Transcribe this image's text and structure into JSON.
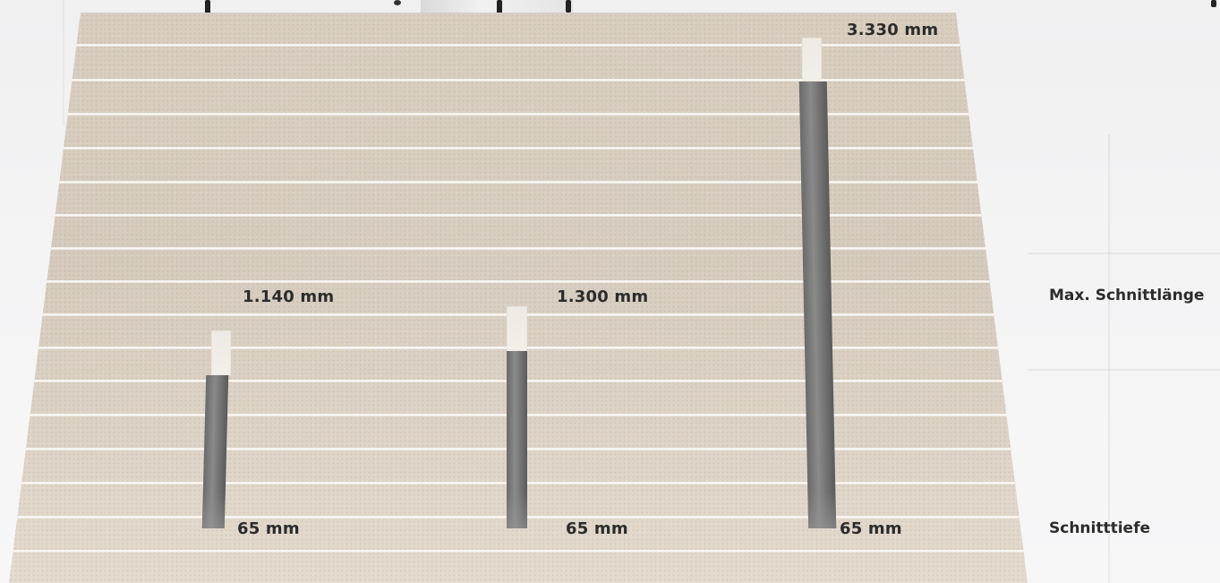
{
  "measurements": {
    "cut1": {
      "length": "1.140 mm",
      "depth": "65 mm"
    },
    "cut2": {
      "length": "1.300 mm",
      "depth": "65 mm"
    },
    "cut3": {
      "length": "3.330 mm",
      "depth": "65 mm"
    }
  },
  "legend": {
    "max_length": "Max. Schnittlänge",
    "depth": "Schnitttiefe"
  },
  "colors": {
    "board": "#d6cbbd",
    "groove": "#ffffff",
    "cut": "#6f6f6f",
    "text": "#2c2c2c"
  }
}
